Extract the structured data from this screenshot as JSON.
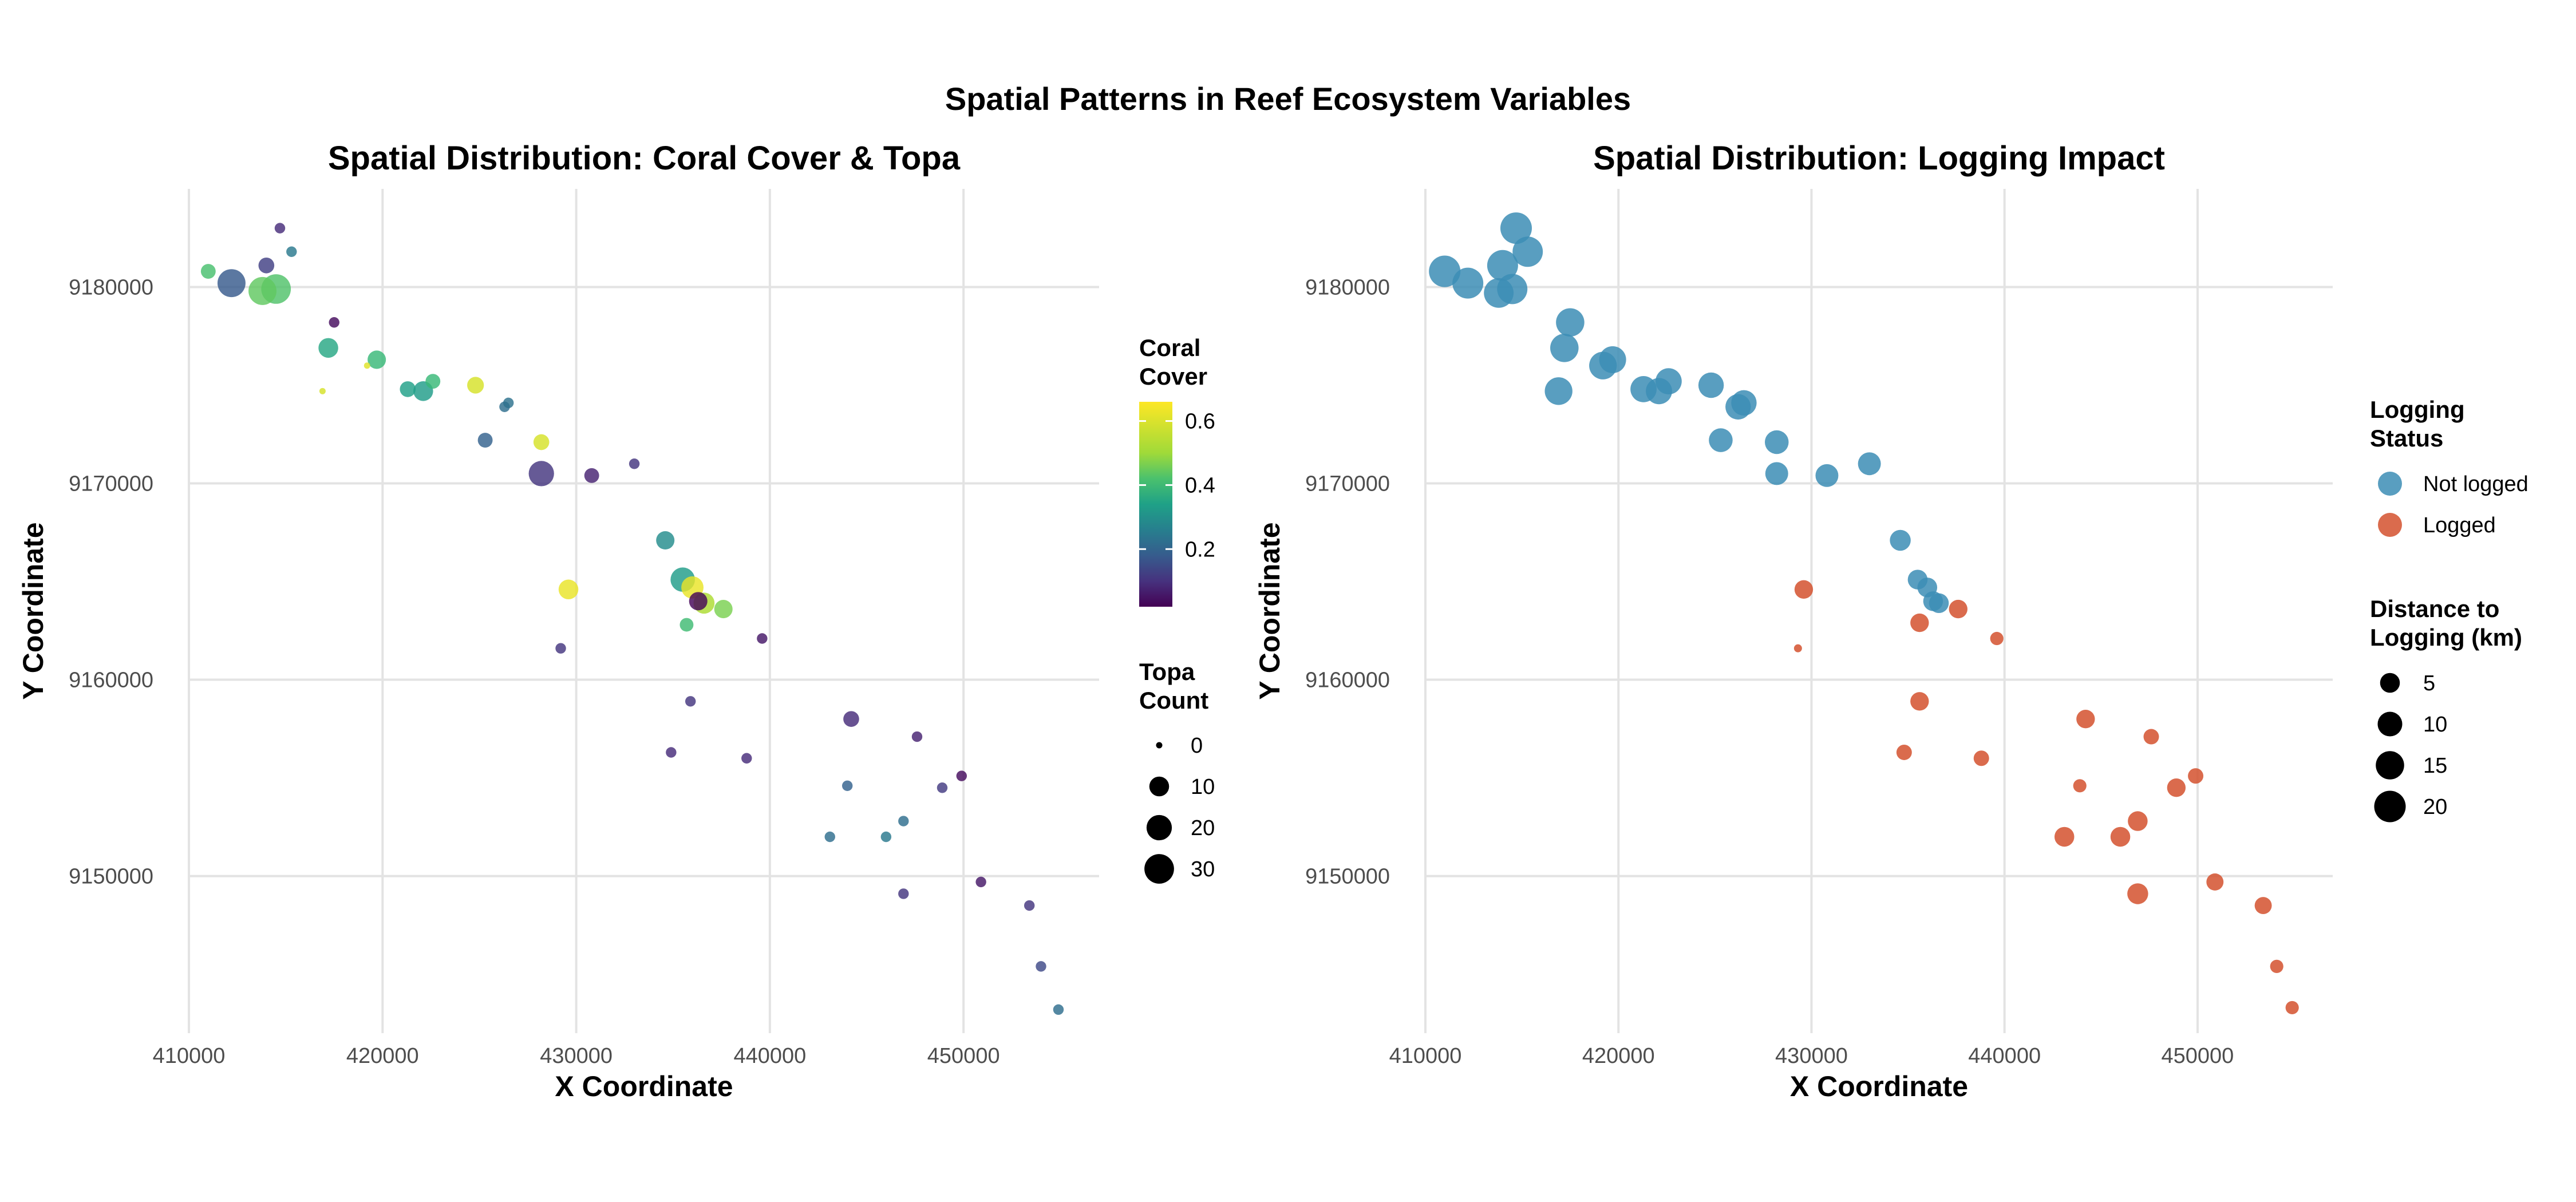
{
  "title": "Spatial Patterns in Reef Ecosystem Variables",
  "chart_data": [
    {
      "type": "scatter",
      "title": "Spatial Distribution: Coral Cover & Topa",
      "xlabel": "X Coordinate",
      "ylabel": "Y Coordinate",
      "xlim": [
        410000,
        457000
      ],
      "ylim": [
        9142000,
        9185000
      ],
      "x_ticks": [
        410000,
        420000,
        430000,
        440000,
        450000
      ],
      "y_ticks": [
        9150000,
        9160000,
        9170000,
        9180000
      ],
      "x_tick_labels": [
        "410000",
        "420000",
        "430000",
        "440000",
        "450000"
      ],
      "y_tick_labels": [
        "9150000",
        "9160000",
        "9170000",
        "9180000"
      ],
      "grid": true,
      "color_variable": "Coral Cover",
      "size_variable": "Topa Count",
      "colormap": "viridis",
      "color_range": [
        0.02,
        0.66
      ],
      "size_range": [
        0,
        35
      ],
      "legend_color": {
        "title": [
          "Coral",
          "Cover"
        ],
        "ticks": [
          0.6,
          0.4,
          0.2
        ],
        "tick_labels": [
          "0.6",
          "0.4",
          "0.2"
        ]
      },
      "legend_size": {
        "title": [
          "Topa",
          "Count"
        ],
        "values": [
          0,
          10,
          20,
          30
        ],
        "labels": [
          "0",
          "10",
          "20",
          "30"
        ]
      },
      "legend_position": "right",
      "points": [
        {
          "x": 411000,
          "y": 9180800,
          "coral": 0.47,
          "topa": 4
        },
        {
          "x": 412200,
          "y": 9180200,
          "coral": 0.2,
          "topa": 26
        },
        {
          "x": 413800,
          "y": 9179800,
          "coral": 0.5,
          "topa": 26
        },
        {
          "x": 414500,
          "y": 9179900,
          "coral": 0.48,
          "topa": 30
        },
        {
          "x": 414000,
          "y": 9181100,
          "coral": 0.14,
          "topa": 5
        },
        {
          "x": 414700,
          "y": 9183000,
          "coral": 0.1,
          "topa": 1
        },
        {
          "x": 415300,
          "y": 9181800,
          "coral": 0.28,
          "topa": 1
        },
        {
          "x": 417500,
          "y": 9178200,
          "coral": 0.04,
          "topa": 1
        },
        {
          "x": 417200,
          "y": 9176900,
          "coral": 0.4,
          "topa": 10
        },
        {
          "x": 416900,
          "y": 9174700,
          "coral": 0.62,
          "topa": 0
        },
        {
          "x": 419200,
          "y": 9176000,
          "coral": 0.63,
          "topa": 0
        },
        {
          "x": 419700,
          "y": 9176300,
          "coral": 0.45,
          "topa": 8
        },
        {
          "x": 421300,
          "y": 9174800,
          "coral": 0.38,
          "topa": 5
        },
        {
          "x": 422100,
          "y": 9174700,
          "coral": 0.37,
          "topa": 10
        },
        {
          "x": 422600,
          "y": 9175200,
          "coral": 0.45,
          "topa": 4
        },
        {
          "x": 424800,
          "y": 9175000,
          "coral": 0.62,
          "topa": 6
        },
        {
          "x": 426300,
          "y": 9173900,
          "coral": 0.25,
          "topa": 1
        },
        {
          "x": 426500,
          "y": 9174100,
          "coral": 0.26,
          "topa": 1
        },
        {
          "x": 425300,
          "y": 9172200,
          "coral": 0.22,
          "topa": 4
        },
        {
          "x": 428200,
          "y": 9172100,
          "coral": 0.62,
          "topa": 5
        },
        {
          "x": 428200,
          "y": 9170500,
          "coral": 0.12,
          "topa": 20
        },
        {
          "x": 430800,
          "y": 9170400,
          "coral": 0.08,
          "topa": 4
        },
        {
          "x": 433000,
          "y": 9171000,
          "coral": 0.12,
          "topa": 1
        },
        {
          "x": 429600,
          "y": 9164600,
          "coral": 0.64,
          "topa": 10
        },
        {
          "x": 429200,
          "y": 9161600,
          "coral": 0.12,
          "topa": 1
        },
        {
          "x": 434600,
          "y": 9167100,
          "coral": 0.33,
          "topa": 8
        },
        {
          "x": 435500,
          "y": 9165100,
          "coral": 0.37,
          "topa": 18
        },
        {
          "x": 436000,
          "y": 9164700,
          "coral": 0.64,
          "topa": 14
        },
        {
          "x": 436300,
          "y": 9164000,
          "coral": 0.03,
          "topa": 8
        },
        {
          "x": 436600,
          "y": 9163900,
          "coral": 0.58,
          "topa": 12
        },
        {
          "x": 437600,
          "y": 9163600,
          "coral": 0.53,
          "topa": 8
        },
        {
          "x": 435700,
          "y": 9162800,
          "coral": 0.46,
          "topa": 3
        },
        {
          "x": 439600,
          "y": 9162100,
          "coral": 0.06,
          "topa": 1
        },
        {
          "x": 435900,
          "y": 9158900,
          "coral": 0.12,
          "topa": 1
        },
        {
          "x": 434900,
          "y": 9156300,
          "coral": 0.1,
          "topa": 1
        },
        {
          "x": 438800,
          "y": 9156000,
          "coral": 0.1,
          "topa": 1
        },
        {
          "x": 444200,
          "y": 9158000,
          "coral": 0.1,
          "topa": 5
        },
        {
          "x": 447600,
          "y": 9157100,
          "coral": 0.08,
          "topa": 1
        },
        {
          "x": 444000,
          "y": 9154600,
          "coral": 0.22,
          "topa": 1
        },
        {
          "x": 448900,
          "y": 9154500,
          "coral": 0.13,
          "topa": 1
        },
        {
          "x": 449900,
          "y": 9155100,
          "coral": 0.04,
          "topa": 1
        },
        {
          "x": 446900,
          "y": 9152800,
          "coral": 0.25,
          "topa": 1
        },
        {
          "x": 443100,
          "y": 9152000,
          "coral": 0.25,
          "topa": 1
        },
        {
          "x": 446000,
          "y": 9152000,
          "coral": 0.28,
          "topa": 1
        },
        {
          "x": 446900,
          "y": 9149100,
          "coral": 0.12,
          "topa": 1
        },
        {
          "x": 450900,
          "y": 9149700,
          "coral": 0.06,
          "topa": 1
        },
        {
          "x": 453400,
          "y": 9148500,
          "coral": 0.12,
          "topa": 1
        },
        {
          "x": 454000,
          "y": 9145400,
          "coral": 0.16,
          "topa": 1
        },
        {
          "x": 454900,
          "y": 9143200,
          "coral": 0.25,
          "topa": 1
        }
      ]
    },
    {
      "type": "scatter",
      "title": "Spatial Distribution: Logging Impact",
      "xlabel": "X Coordinate",
      "ylabel": "Y Coordinate",
      "xlim": [
        410000,
        457000
      ],
      "ylim": [
        9142000,
        9185000
      ],
      "x_ticks": [
        410000,
        420000,
        430000,
        440000,
        450000
      ],
      "y_ticks": [
        9150000,
        9160000,
        9170000,
        9180000
      ],
      "x_tick_labels": [
        "410000",
        "420000",
        "430000",
        "440000",
        "450000"
      ],
      "y_tick_labels": [
        "9150000",
        "9160000",
        "9170000",
        "9180000"
      ],
      "grid": true,
      "color_variable": "Logging Status",
      "size_variable": "Distance to Logging (km)",
      "size_range": [
        0,
        23
      ],
      "legend_color": {
        "title": [
          "Logging",
          "Status"
        ],
        "entries": [
          {
            "label": "Not logged",
            "color": "#3C8DB5"
          },
          {
            "label": "Logged",
            "color": "#D4512E"
          }
        ]
      },
      "legend_size": {
        "title": [
          "Distance to",
          "Logging (km)"
        ],
        "values": [
          5,
          10,
          15,
          20
        ],
        "labels": [
          "5",
          "10",
          "15",
          "20"
        ]
      },
      "legend_position": "right",
      "points": [
        {
          "x": 411000,
          "y": 9180800,
          "logged": false,
          "dist": 20
        },
        {
          "x": 412200,
          "y": 9180200,
          "logged": false,
          "dist": 19
        },
        {
          "x": 413800,
          "y": 9179700,
          "logged": false,
          "dist": 17
        },
        {
          "x": 414500,
          "y": 9179900,
          "logged": false,
          "dist": 18
        },
        {
          "x": 414000,
          "y": 9181100,
          "logged": false,
          "dist": 19
        },
        {
          "x": 414700,
          "y": 9183000,
          "logged": false,
          "dist": 20
        },
        {
          "x": 415300,
          "y": 9181800,
          "logged": false,
          "dist": 18
        },
        {
          "x": 417500,
          "y": 9178200,
          "logged": false,
          "dist": 15
        },
        {
          "x": 417200,
          "y": 9176900,
          "logged": false,
          "dist": 15
        },
        {
          "x": 416900,
          "y": 9174700,
          "logged": false,
          "dist": 14
        },
        {
          "x": 419200,
          "y": 9176000,
          "logged": false,
          "dist": 14
        },
        {
          "x": 419700,
          "y": 9176300,
          "logged": false,
          "dist": 13
        },
        {
          "x": 421300,
          "y": 9174800,
          "logged": false,
          "dist": 12
        },
        {
          "x": 422100,
          "y": 9174700,
          "logged": false,
          "dist": 12
        },
        {
          "x": 422600,
          "y": 9175200,
          "logged": false,
          "dist": 12
        },
        {
          "x": 424800,
          "y": 9175000,
          "logged": false,
          "dist": 11
        },
        {
          "x": 426200,
          "y": 9173900,
          "logged": false,
          "dist": 11
        },
        {
          "x": 426500,
          "y": 9174100,
          "logged": false,
          "dist": 11
        },
        {
          "x": 425300,
          "y": 9172200,
          "logged": false,
          "dist": 9
        },
        {
          "x": 428200,
          "y": 9172100,
          "logged": false,
          "dist": 9
        },
        {
          "x": 428200,
          "y": 9170500,
          "logged": false,
          "dist": 8
        },
        {
          "x": 430800,
          "y": 9170400,
          "logged": false,
          "dist": 8
        },
        {
          "x": 433000,
          "y": 9171000,
          "logged": false,
          "dist": 8
        },
        {
          "x": 434600,
          "y": 9167100,
          "logged": false,
          "dist": 6
        },
        {
          "x": 435500,
          "y": 9165100,
          "logged": false,
          "dist": 5
        },
        {
          "x": 436000,
          "y": 9164700,
          "logged": false,
          "dist": 5
        },
        {
          "x": 436300,
          "y": 9164000,
          "logged": false,
          "dist": 5
        },
        {
          "x": 436600,
          "y": 9163900,
          "logged": false,
          "dist": 5
        },
        {
          "x": 429600,
          "y": 9164600,
          "logged": true,
          "dist": 4
        },
        {
          "x": 429300,
          "y": 9161600,
          "logged": true,
          "dist": 0
        },
        {
          "x": 435600,
          "y": 9162900,
          "logged": true,
          "dist": 4
        },
        {
          "x": 437600,
          "y": 9163600,
          "logged": true,
          "dist": 4
        },
        {
          "x": 439600,
          "y": 9162100,
          "logged": true,
          "dist": 1
        },
        {
          "x": 435600,
          "y": 9158900,
          "logged": true,
          "dist": 4
        },
        {
          "x": 434800,
          "y": 9156300,
          "logged": true,
          "dist": 2
        },
        {
          "x": 438800,
          "y": 9156000,
          "logged": true,
          "dist": 2
        },
        {
          "x": 444200,
          "y": 9158000,
          "logged": true,
          "dist": 4
        },
        {
          "x": 447600,
          "y": 9157100,
          "logged": true,
          "dist": 2
        },
        {
          "x": 443900,
          "y": 9154600,
          "logged": true,
          "dist": 1
        },
        {
          "x": 448900,
          "y": 9154500,
          "logged": true,
          "dist": 4
        },
        {
          "x": 449900,
          "y": 9155100,
          "logged": true,
          "dist": 2
        },
        {
          "x": 446900,
          "y": 9152800,
          "logged": true,
          "dist": 5
        },
        {
          "x": 443100,
          "y": 9152000,
          "logged": true,
          "dist": 5
        },
        {
          "x": 446000,
          "y": 9152000,
          "logged": true,
          "dist": 5
        },
        {
          "x": 446900,
          "y": 9149100,
          "logged": true,
          "dist": 6
        },
        {
          "x": 450900,
          "y": 9149700,
          "logged": true,
          "dist": 3
        },
        {
          "x": 453400,
          "y": 9148500,
          "logged": true,
          "dist": 3
        },
        {
          "x": 454100,
          "y": 9145400,
          "logged": true,
          "dist": 1
        },
        {
          "x": 454900,
          "y": 9143300,
          "logged": true,
          "dist": 1
        }
      ]
    }
  ]
}
